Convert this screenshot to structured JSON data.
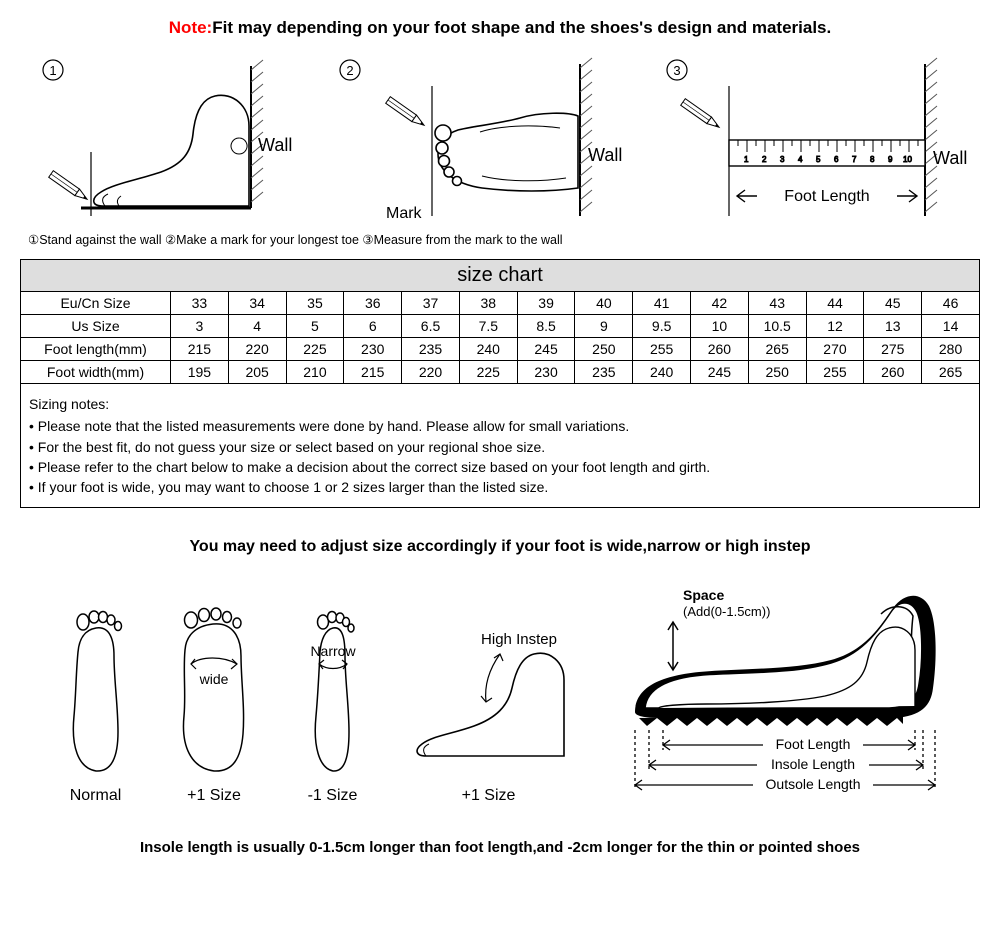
{
  "note_label": "Note:",
  "note_text": "Fit may depending on your foot shape and the shoes's design and materials.",
  "diagrams": {
    "step1": {
      "num": "1",
      "wall_label": "Wall"
    },
    "step2": {
      "num": "2",
      "wall_label": "Wall",
      "mark_label": "Mark"
    },
    "step3": {
      "num": "3",
      "wall_label": "Wall",
      "foot_length_label": "Foot Length"
    }
  },
  "step_line": "①Stand against the wall  ②Make a mark for your longest toe  ③Measure from the mark to the wall",
  "size_chart": {
    "title": "size chart",
    "row_labels": [
      "Eu/Cn Size",
      "Us Size",
      "Foot length(mm)",
      "Foot width(mm)"
    ],
    "columns": [
      "33",
      "34",
      "35",
      "36",
      "37",
      "38",
      "39",
      "40",
      "41",
      "42",
      "43",
      "44",
      "45",
      "46"
    ],
    "rows": [
      [
        "33",
        "34",
        "35",
        "36",
        "37",
        "38",
        "39",
        "40",
        "41",
        "42",
        "43",
        "44",
        "45",
        "46"
      ],
      [
        "3",
        "4",
        "5",
        "6",
        "6.5",
        "7.5",
        "8.5",
        "9",
        "9.5",
        "10",
        "10.5",
        "12",
        "13",
        "14"
      ],
      [
        "215",
        "220",
        "225",
        "230",
        "235",
        "240",
        "245",
        "250",
        "255",
        "260",
        "265",
        "270",
        "275",
        "280"
      ],
      [
        "195",
        "205",
        "210",
        "215",
        "220",
        "225",
        "230",
        "235",
        "240",
        "245",
        "250",
        "255",
        "260",
        "265"
      ]
    ],
    "title_bg": "#dedede",
    "border_color": "#000000",
    "cell_fontsize": 14
  },
  "notes": {
    "title": "Sizing notes:",
    "bullets": [
      "• Please note that the listed measurements were done by hand. Please allow for small variations.",
      "• For the best fit, do not guess your size or select based on your regional shoe size.",
      "• Please refer to the chart below to make a decision about the correct size based on your foot length and girth.",
      "• If your foot is wide, you may want to choose 1 or 2 sizes larger than the listed size."
    ]
  },
  "adjust_text": "You may need to adjust size accordingly if your foot is wide,narrow or high instep",
  "foot_types": {
    "normal_label": "Normal",
    "wide_label": "+1 Size",
    "wide_tag": "wide",
    "narrow_label": "-1 Size",
    "narrow_tag": "Narrow",
    "instep_label": "+1 Size",
    "instep_tag": "High Instep"
  },
  "shoe_diagram": {
    "space_label": "Space",
    "space_sub": "(Add(0-1.5cm))",
    "foot_length": "Foot Length",
    "insole_length": "Insole Length",
    "outsole_length": "Outsole Length"
  },
  "bottom_text": "Insole length is usually 0-1.5cm longer than foot length,and -2cm longer for the thin or pointed shoes",
  "colors": {
    "note_red": "#ff0000",
    "text": "#000000",
    "background": "#ffffff",
    "hatch": "#555555"
  }
}
